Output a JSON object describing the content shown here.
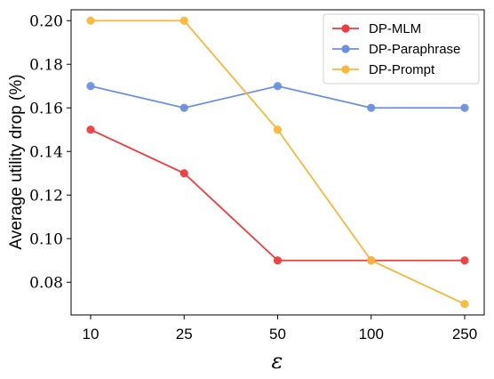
{
  "chart_data": {
    "type": "line",
    "categories": [
      "10",
      "25",
      "50",
      "100",
      "250"
    ],
    "series": [
      {
        "name": "DP-MLM",
        "color": "#f03c3c",
        "values": [
          0.15,
          0.13,
          0.09,
          0.09,
          0.09
        ]
      },
      {
        "name": "DP-Paraphrase",
        "color": "#6c8fe0",
        "values": [
          0.17,
          0.16,
          0.17,
          0.16,
          0.16
        ]
      },
      {
        "name": "DP-Prompt",
        "color": "#f8b73a",
        "values": [
          0.2,
          0.2,
          0.15,
          0.09,
          0.07
        ]
      }
    ],
    "title": "",
    "xlabel": "ε",
    "ylabel": "Average utility drop (%)",
    "ylim": [
      0.065,
      0.205
    ],
    "yticks": [
      "0.08",
      "0.10",
      "0.12",
      "0.14",
      "0.16",
      "0.18",
      "0.20"
    ],
    "grid": false,
    "legend_position": "top-right"
  }
}
